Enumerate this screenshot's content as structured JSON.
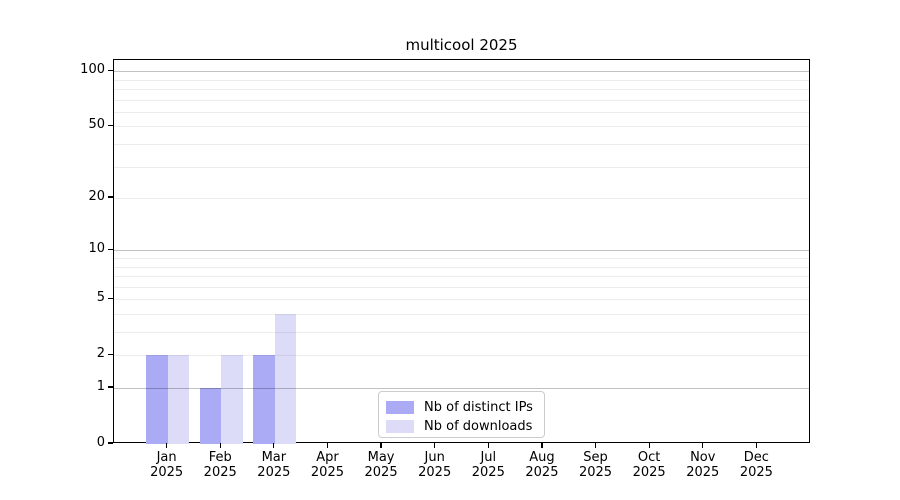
{
  "title": "multicool 2025",
  "colors": {
    "background": "#ffffff",
    "axis": "#000000",
    "grid_major": "#c2c2c2",
    "grid_minor": "#ededed",
    "legend_border": "#cccccc",
    "series_ips": "#aaaaf5",
    "series_downloads": "#dcdcf9"
  },
  "chart_data": {
    "type": "bar",
    "title": "multicool 2025",
    "categories": [
      "Jan 2025",
      "Feb 2025",
      "Mar 2025",
      "Apr 2025",
      "May 2025",
      "Jun 2025",
      "Jul 2025",
      "Aug 2025",
      "Sep 2025",
      "Oct 2025",
      "Nov 2025",
      "Dec 2025"
    ],
    "series": [
      {
        "name": "Nb of distinct IPs",
        "color": "#aaaaf5",
        "values": [
          2,
          1,
          2,
          0,
          0,
          0,
          0,
          0,
          0,
          0,
          0,
          0
        ]
      },
      {
        "name": "Nb of downloads",
        "color": "#dcdcf9",
        "values": [
          2,
          2,
          4,
          0,
          0,
          0,
          0,
          0,
          0,
          0,
          0,
          0
        ]
      }
    ],
    "xlabel": "",
    "ylabel": "",
    "y_scale": "log1p",
    "ylim": [
      0,
      115
    ],
    "y_ticks": [
      0,
      1,
      2,
      5,
      10,
      20,
      50,
      100
    ],
    "grid_major_at": [
      1,
      10,
      100
    ],
    "grid_minor_at": [
      2,
      3,
      4,
      5,
      6,
      7,
      8,
      9,
      20,
      30,
      40,
      50,
      60,
      70,
      80,
      90
    ],
    "grid": "on",
    "grid_above_bars": true,
    "legend_position": "lower center"
  }
}
